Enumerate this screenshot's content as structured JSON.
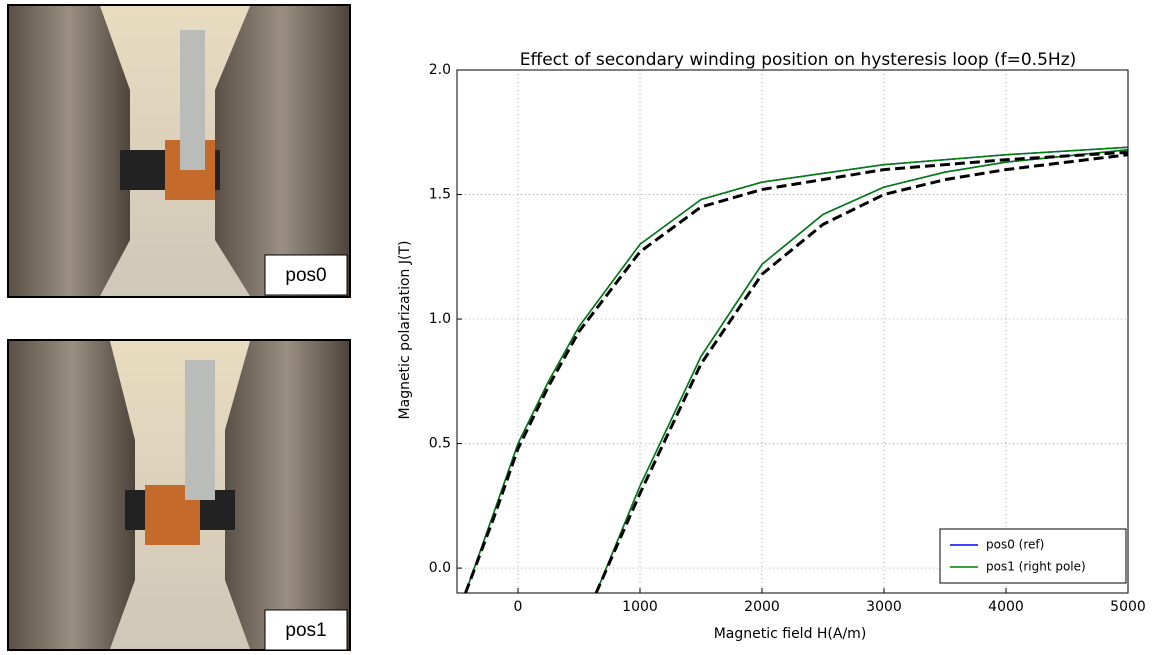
{
  "chart_data": {
    "type": "line",
    "title": "Effect of secondary winding position on hysteresis loop (f=0.5Hz)",
    "xlabel": "Magnetic field H(A/m)",
    "ylabel": "Magnetic polarization J(T)",
    "photo_labels": [
      "pos0",
      "pos1"
    ],
    "x": [
      -430,
      -200,
      0,
      250,
      500,
      1000,
      1500,
      2000,
      3000,
      4000,
      5000,
      null,
      640,
      1000,
      1500,
      2000,
      2500,
      3000,
      3500,
      4000,
      5000
    ],
    "series": [
      {
        "name": "pos0 (ref)",
        "color": "#0000ff",
        "style": "solid",
        "values": [
          -0.1,
          0.22,
          0.5,
          0.75,
          0.97,
          1.3,
          1.48,
          1.55,
          1.62,
          1.66,
          1.69,
          null,
          -0.1,
          0.33,
          0.85,
          1.22,
          1.42,
          1.53,
          1.59,
          1.63,
          1.68
        ]
      },
      {
        "name": "pos1 (right pole)",
        "color": "#008000",
        "style": "solid",
        "values": [
          -0.1,
          0.22,
          0.5,
          0.75,
          0.97,
          1.3,
          1.48,
          1.55,
          1.62,
          1.66,
          1.69,
          null,
          -0.1,
          0.33,
          0.85,
          1.22,
          1.42,
          1.53,
          1.59,
          1.63,
          1.68
        ]
      },
      {
        "color": "#000000",
        "style": "dashed",
        "values": [
          -0.1,
          0.2,
          0.48,
          0.73,
          0.95,
          1.27,
          1.45,
          1.52,
          1.6,
          1.64,
          1.67,
          null,
          -0.1,
          0.3,
          0.82,
          1.18,
          1.38,
          1.5,
          1.56,
          1.6,
          1.66
        ]
      }
    ],
    "xlim": [
      -500,
      5000
    ],
    "ylim": [
      -0.1,
      2.0
    ],
    "xticks": [
      0,
      1000,
      2000,
      3000,
      4000,
      5000
    ],
    "yticks": [
      {
        "value": 0,
        "label": "0.0"
      },
      0.5,
      {
        "value": 1,
        "label": "1.0"
      },
      1.5,
      {
        "value": 2,
        "label": "2.0"
      }
    ],
    "grid": true,
    "legend": "lower right"
  }
}
